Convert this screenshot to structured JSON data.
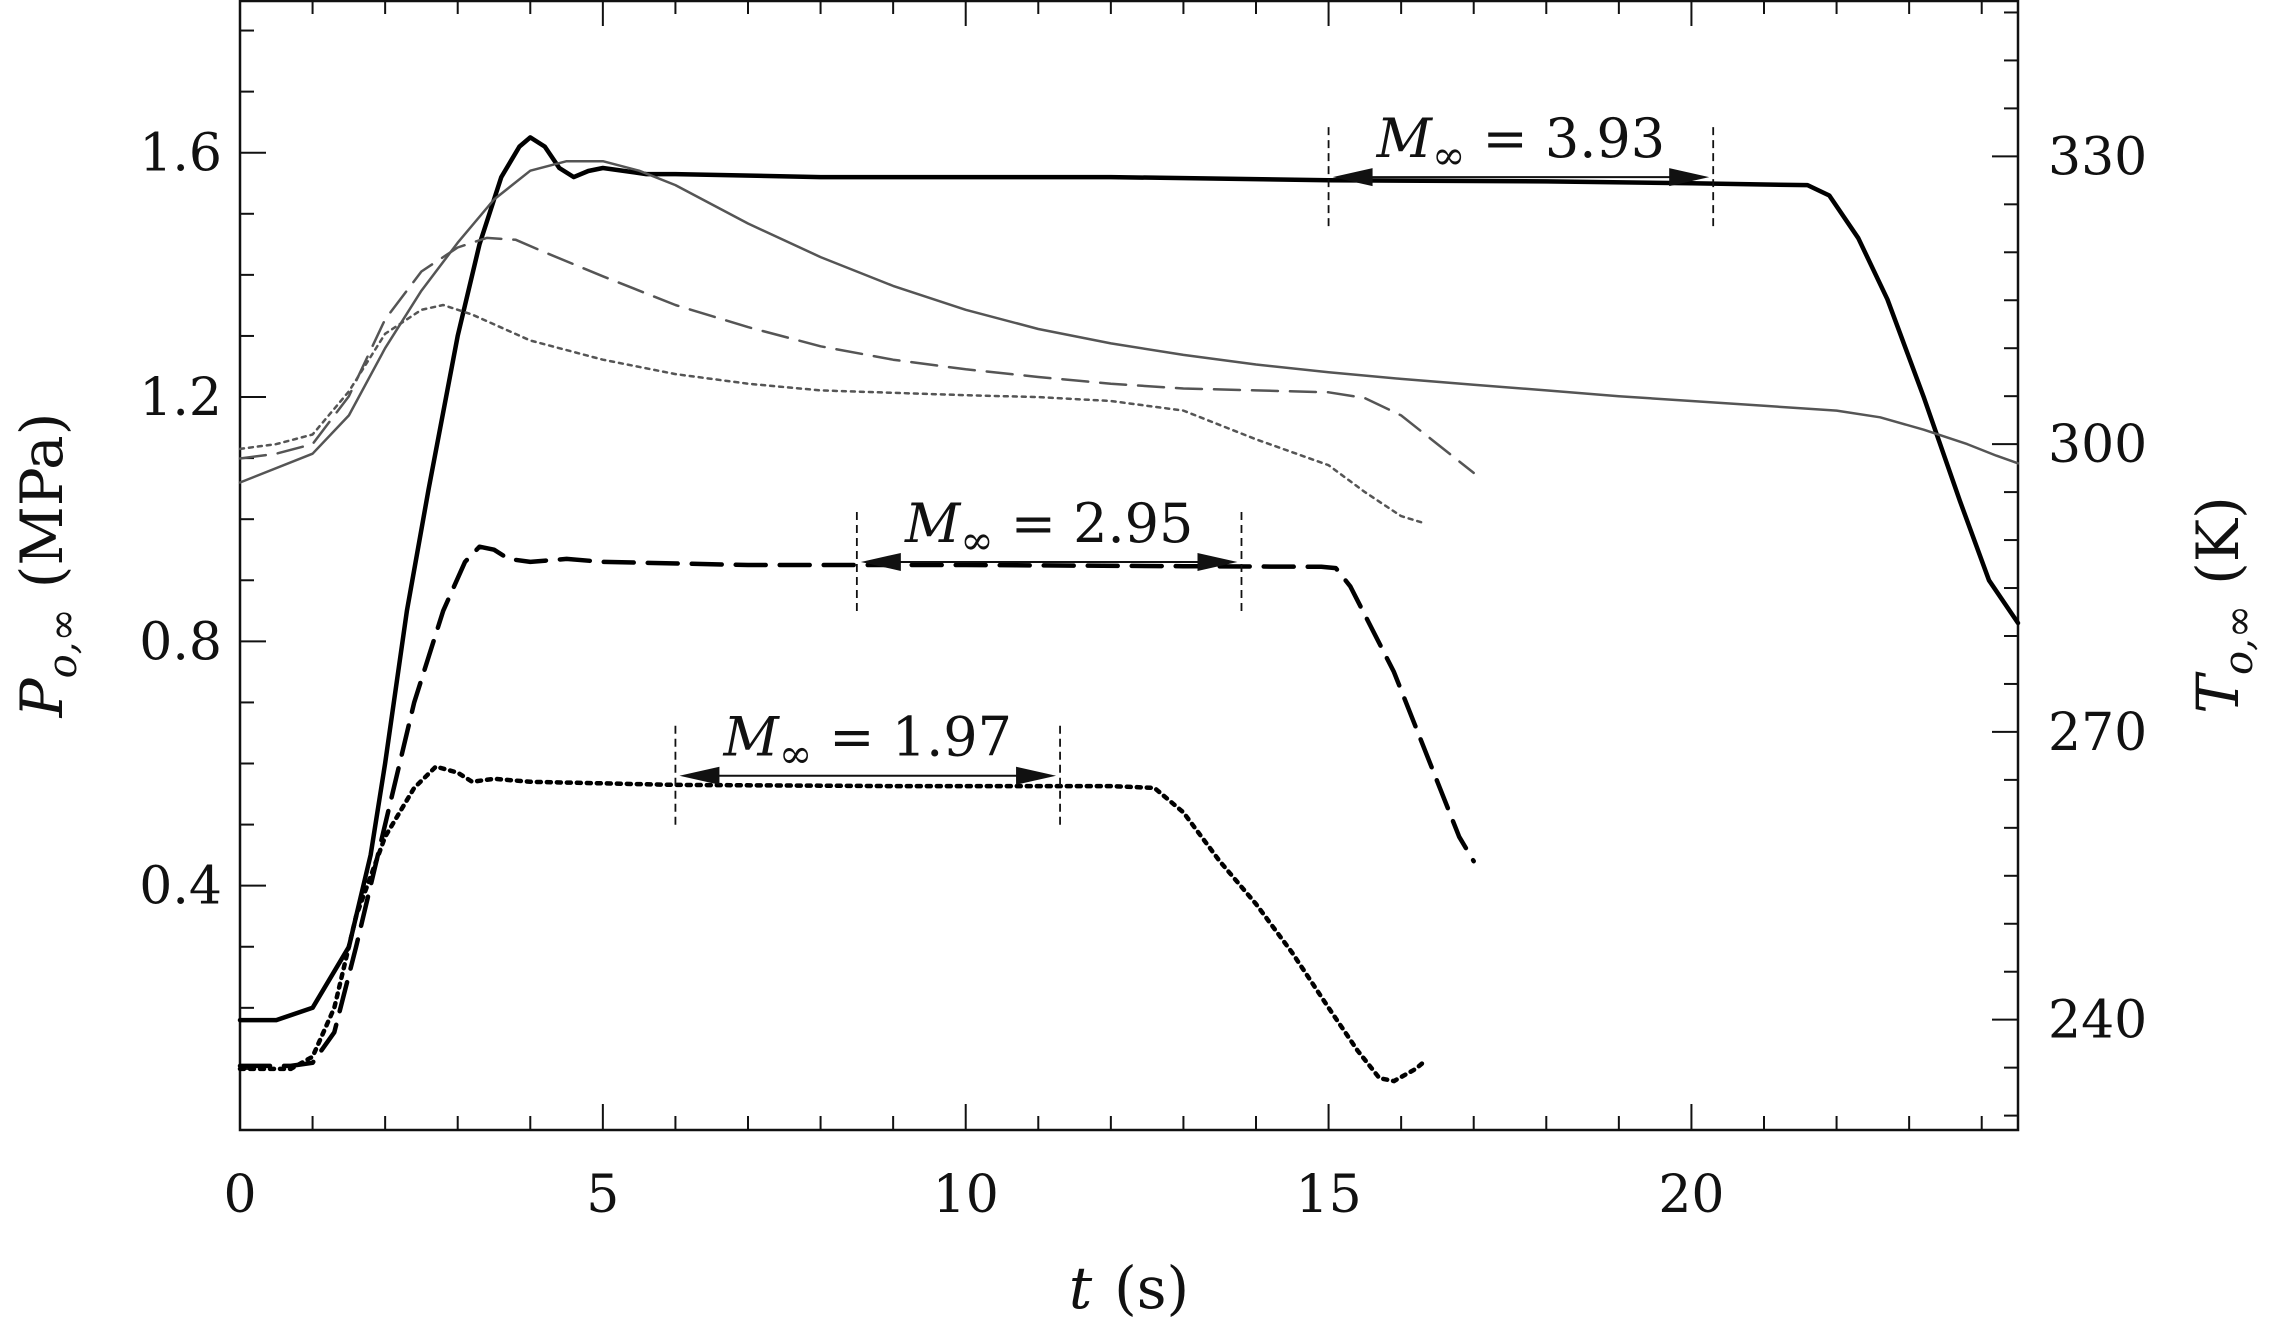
{
  "chart_data": {
    "type": "line",
    "xlabel": {
      "var": "t",
      "unit": "(s)"
    },
    "ylabel_left": {
      "var": "P",
      "sub": "o,∞",
      "unit": "(MPa)"
    },
    "ylabel_right": {
      "var": "T",
      "sub": "o,∞",
      "unit": "(K)"
    },
    "xlim": [
      0,
      24.5
    ],
    "ylim_left": [
      0.0,
      1.85
    ],
    "ylim_right": [
      228.5,
      346.3
    ],
    "x_ticks": [
      "0",
      "5",
      "10",
      "15",
      "20"
    ],
    "y_left_ticks": [
      "0.4",
      "0.8",
      "1.2",
      "1.6"
    ],
    "y_right_ticks": [
      "240",
      "270",
      "300",
      "330"
    ],
    "annotations": [
      {
        "label": "M∞ = 3.93",
        "sym": "M",
        "sub": "∞",
        "rest": " = 3.93",
        "x_start": 15.0,
        "x_end": 20.3,
        "y": 1.56
      },
      {
        "label": "M∞ = 2.95",
        "sym": "M",
        "sub": "∞",
        "rest": " = 2.95",
        "x_start": 8.5,
        "x_end": 13.8,
        "y": 0.93
      },
      {
        "label": "M∞ = 1.97",
        "sym": "M",
        "sub": "∞",
        "rest": " = 1.97",
        "x_start": 6.0,
        "x_end": 11.3,
        "y": 0.58
      }
    ],
    "series": [
      {
        "axis": "left",
        "style": "solid-thick",
        "points": [
          [
            0,
            0.18
          ],
          [
            0.5,
            0.18
          ],
          [
            1,
            0.2
          ],
          [
            1.5,
            0.3
          ],
          [
            1.8,
            0.45
          ],
          [
            2,
            0.6
          ],
          [
            2.3,
            0.85
          ],
          [
            2.6,
            1.05
          ],
          [
            3,
            1.3
          ],
          [
            3.3,
            1.45
          ],
          [
            3.6,
            1.56
          ],
          [
            3.85,
            1.61
          ],
          [
            4,
            1.625
          ],
          [
            4.2,
            1.61
          ],
          [
            4.4,
            1.575
          ],
          [
            4.6,
            1.56
          ],
          [
            4.8,
            1.57
          ],
          [
            5,
            1.575
          ],
          [
            5.3,
            1.57
          ],
          [
            5.6,
            1.565
          ],
          [
            6,
            1.565
          ],
          [
            8,
            1.56
          ],
          [
            12,
            1.56
          ],
          [
            15,
            1.555
          ],
          [
            18,
            1.553
          ],
          [
            20,
            1.55
          ],
          [
            21,
            1.548
          ],
          [
            21.6,
            1.547
          ],
          [
            21.9,
            1.53
          ],
          [
            22.3,
            1.46
          ],
          [
            22.7,
            1.36
          ],
          [
            23.2,
            1.2
          ],
          [
            23.7,
            1.03
          ],
          [
            24.1,
            0.9
          ],
          [
            24.5,
            0.83
          ]
        ]
      },
      {
        "axis": "left",
        "style": "dashed-thick",
        "points": [
          [
            0,
            0.105
          ],
          [
            0.7,
            0.105
          ],
          [
            1,
            0.11
          ],
          [
            1.3,
            0.16
          ],
          [
            1.6,
            0.3
          ],
          [
            2,
            0.5
          ],
          [
            2.4,
            0.7
          ],
          [
            2.8,
            0.85
          ],
          [
            3.1,
            0.93
          ],
          [
            3.3,
            0.955
          ],
          [
            3.5,
            0.95
          ],
          [
            3.7,
            0.935
          ],
          [
            4,
            0.93
          ],
          [
            4.5,
            0.935
          ],
          [
            5,
            0.93
          ],
          [
            7,
            0.925
          ],
          [
            10,
            0.925
          ],
          [
            13,
            0.923
          ],
          [
            14.9,
            0.922
          ],
          [
            15.1,
            0.92
          ],
          [
            15.3,
            0.89
          ],
          [
            15.6,
            0.82
          ],
          [
            15.9,
            0.75
          ],
          [
            16.2,
            0.66
          ],
          [
            16.5,
            0.57
          ],
          [
            16.8,
            0.48
          ],
          [
            17,
            0.44
          ]
        ]
      },
      {
        "axis": "left",
        "style": "dotted-thick",
        "points": [
          [
            0,
            0.1
          ],
          [
            0.7,
            0.1
          ],
          [
            1,
            0.12
          ],
          [
            1.3,
            0.2
          ],
          [
            1.6,
            0.35
          ],
          [
            2,
            0.48
          ],
          [
            2.4,
            0.56
          ],
          [
            2.7,
            0.595
          ],
          [
            3,
            0.585
          ],
          [
            3.2,
            0.57
          ],
          [
            3.5,
            0.575
          ],
          [
            4,
            0.57
          ],
          [
            6,
            0.565
          ],
          [
            9,
            0.563
          ],
          [
            12,
            0.563
          ],
          [
            12.6,
            0.56
          ],
          [
            13,
            0.52
          ],
          [
            13.5,
            0.44
          ],
          [
            14,
            0.37
          ],
          [
            14.5,
            0.29
          ],
          [
            15,
            0.2
          ],
          [
            15.4,
            0.13
          ],
          [
            15.7,
            0.085
          ],
          [
            15.9,
            0.08
          ],
          [
            16.2,
            0.1
          ],
          [
            16.3,
            0.11
          ]
        ]
      },
      {
        "axis": "right",
        "style": "solid-thin-gray",
        "points": [
          [
            0,
            296
          ],
          [
            1,
            299
          ],
          [
            1.5,
            303
          ],
          [
            2,
            310
          ],
          [
            2.5,
            316
          ],
          [
            3,
            321
          ],
          [
            3.5,
            325.5
          ],
          [
            4,
            328.5
          ],
          [
            4.5,
            329.5
          ],
          [
            5,
            329.5
          ],
          [
            5.5,
            328.5
          ],
          [
            6,
            327
          ],
          [
            7,
            323
          ],
          [
            8,
            319.5
          ],
          [
            9,
            316.5
          ],
          [
            10,
            314
          ],
          [
            11,
            312
          ],
          [
            12,
            310.5
          ],
          [
            13,
            309.3
          ],
          [
            14,
            308.3
          ],
          [
            15,
            307.5
          ],
          [
            16,
            306.8
          ],
          [
            17,
            306.2
          ],
          [
            18,
            305.6
          ],
          [
            19,
            305
          ],
          [
            20,
            304.5
          ],
          [
            21,
            304
          ],
          [
            22,
            303.5
          ],
          [
            22.6,
            302.8
          ],
          [
            23.2,
            301.5
          ],
          [
            23.8,
            300
          ],
          [
            24.2,
            298.8
          ],
          [
            24.5,
            298
          ]
        ]
      },
      {
        "axis": "right",
        "style": "dashed-thin-gray",
        "points": [
          [
            0,
            298.5
          ],
          [
            0.5,
            299
          ],
          [
            1,
            300
          ],
          [
            1.5,
            305
          ],
          [
            2,
            313
          ],
          [
            2.5,
            318
          ],
          [
            3,
            320.5
          ],
          [
            3.4,
            321.5
          ],
          [
            3.8,
            321.3
          ],
          [
            4.2,
            320
          ],
          [
            5,
            317.5
          ],
          [
            6,
            314.5
          ],
          [
            7,
            312.2
          ],
          [
            8,
            310.2
          ],
          [
            9,
            308.8
          ],
          [
            10,
            307.8
          ],
          [
            11,
            307
          ],
          [
            12,
            306.3
          ],
          [
            13,
            305.8
          ],
          [
            14,
            305.6
          ],
          [
            15,
            305.4
          ],
          [
            15.5,
            304.8
          ],
          [
            16,
            303
          ],
          [
            16.5,
            300
          ],
          [
            17,
            297
          ]
        ]
      },
      {
        "axis": "right",
        "style": "dotted-thin-gray",
        "points": [
          [
            0,
            299.5
          ],
          [
            0.5,
            300
          ],
          [
            1,
            301
          ],
          [
            1.5,
            305.5
          ],
          [
            2,
            311.5
          ],
          [
            2.5,
            314
          ],
          [
            2.8,
            314.5
          ],
          [
            3.2,
            313.5
          ],
          [
            4,
            310.8
          ],
          [
            5,
            308.8
          ],
          [
            6,
            307.3
          ],
          [
            7,
            306.3
          ],
          [
            8,
            305.6
          ],
          [
            10,
            305.1
          ],
          [
            11,
            304.9
          ],
          [
            12,
            304.5
          ],
          [
            13,
            303.5
          ],
          [
            14,
            300.5
          ],
          [
            15,
            297.8
          ],
          [
            15.5,
            295
          ],
          [
            16,
            292.5
          ],
          [
            16.3,
            291.8
          ]
        ]
      }
    ]
  }
}
